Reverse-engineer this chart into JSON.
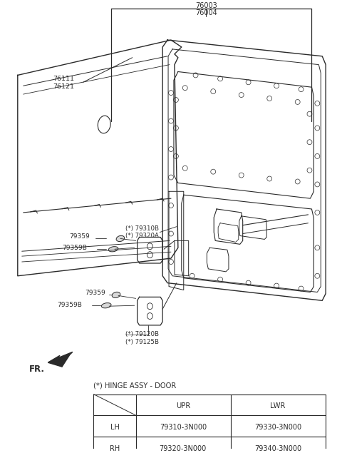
{
  "background_color": "#ffffff",
  "line_color": "#2a2a2a",
  "table_title": "(*) HINGE ASSY - DOOR",
  "table_headers": [
    "",
    "UPR",
    "LWR"
  ],
  "table_rows": [
    [
      "LH",
      "79310-3N000",
      "79330-3N000"
    ],
    [
      "RH",
      "79320-3N000",
      "79340-3N000"
    ]
  ],
  "label_76003": "76003",
  "label_76004": "76004",
  "label_76111": "76111",
  "label_76121": "76121",
  "label_79310B": "(*) 79310B",
  "label_79320A": "(*) 79320A",
  "label_79359_u": "79359",
  "label_79359B_u": "79359B",
  "label_79359_l": "79359",
  "label_79359B_l": "79359B",
  "label_79120B": "(*) 79120B",
  "label_79125B": "(*) 79125B",
  "label_FR": "FR."
}
